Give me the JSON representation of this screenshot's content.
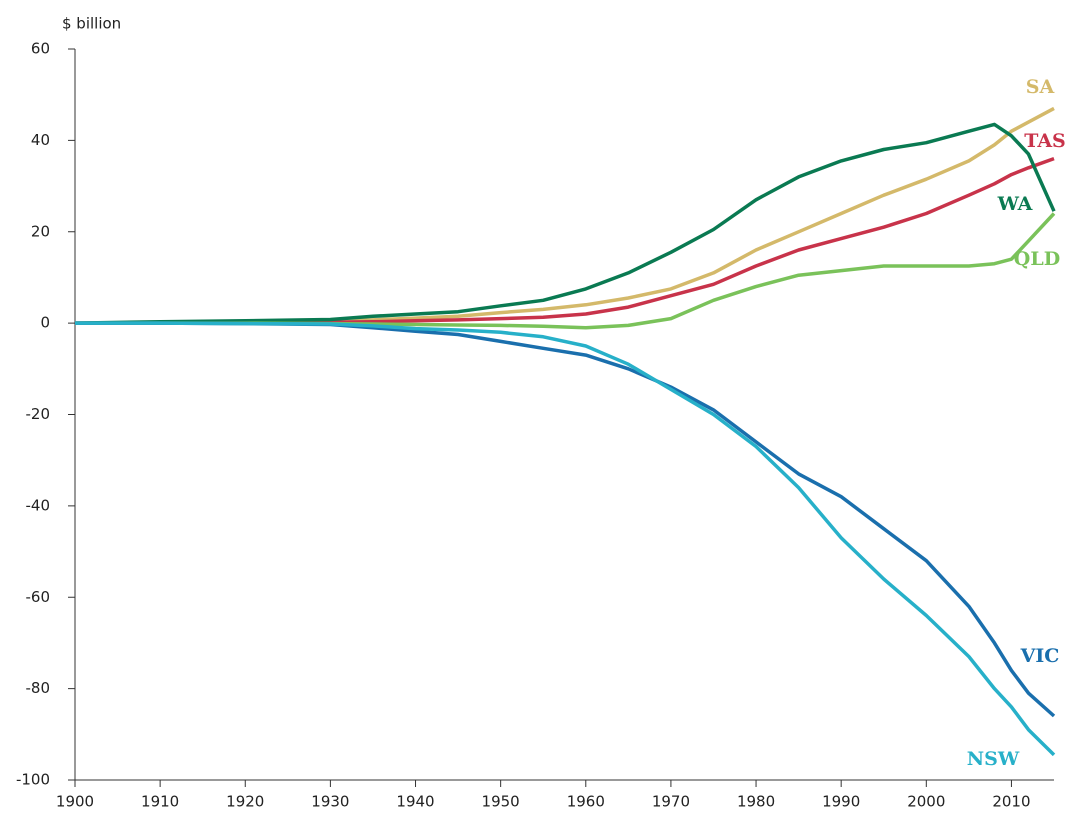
{
  "chart_data": {
    "type": "line",
    "y_label": "$ billion",
    "x": [
      1900,
      1910,
      1920,
      1930,
      1935,
      1940,
      1945,
      1950,
      1955,
      1960,
      1965,
      1970,
      1975,
      1980,
      1985,
      1990,
      1995,
      2000,
      2005,
      2008,
      2010,
      2012,
      2015
    ],
    "xlim": [
      1900,
      2015
    ],
    "xticks": [
      1900,
      1910,
      1920,
      1930,
      1940,
      1950,
      1960,
      1970,
      1980,
      1990,
      2000,
      2010
    ],
    "ylim": [
      -100,
      60
    ],
    "yticks": [
      -100,
      -80,
      -60,
      -40,
      -20,
      0,
      20,
      40,
      60
    ],
    "series": [
      {
        "name": "SA",
        "color": "#d4b96a",
        "values": [
          0,
          0.1,
          0.2,
          0.4,
          0.7,
          1.1,
          1.5,
          2.3,
          3,
          4,
          5.5,
          7.5,
          11,
          16,
          20,
          24,
          28,
          31.5,
          35.5,
          39,
          42,
          44,
          47
        ]
      },
      {
        "name": "TAS",
        "color": "#c8334a",
        "values": [
          0,
          0,
          0.1,
          0.2,
          0.3,
          0.5,
          0.7,
          1,
          1.3,
          2,
          3.5,
          6,
          8.5,
          12.5,
          16,
          18.5,
          21,
          24,
          28,
          30.5,
          32.5,
          34,
          36
        ]
      },
      {
        "name": "WA",
        "color": "#0a7a52",
        "values": [
          0,
          0.3,
          0.5,
          0.8,
          1.5,
          2,
          2.5,
          3.8,
          5,
          7.5,
          11,
          15.5,
          20.5,
          27,
          32,
          35.5,
          38,
          39.5,
          42,
          43.5,
          41,
          37,
          24.5
        ]
      },
      {
        "name": "QLD",
        "color": "#7ac25a",
        "values": [
          0,
          0,
          0,
          -0.1,
          -0.2,
          -0.3,
          -0.4,
          -0.5,
          -0.7,
          -1,
          -0.5,
          1,
          5,
          8,
          10.5,
          11.5,
          12.5,
          12.5,
          12.5,
          13,
          14,
          18,
          24
        ]
      },
      {
        "name": "VIC",
        "color": "#1a6fad",
        "values": [
          0,
          0,
          -0.1,
          -0.3,
          -1,
          -1.8,
          -2.5,
          -4,
          -5.5,
          -7,
          -10,
          -14,
          -19,
          -26,
          -33,
          -38,
          -45,
          -52,
          -62,
          -70,
          -76,
          -81,
          -86
        ]
      },
      {
        "name": "NSW",
        "color": "#27b0c9",
        "values": [
          0,
          0,
          -0.1,
          -0.2,
          -0.6,
          -1.2,
          -1.5,
          -2,
          -3,
          -5,
          -9,
          -14.5,
          -20,
          -27,
          -36,
          -47,
          -56,
          -64,
          -73,
          -80,
          -84,
          -89,
          -94.5
        ]
      }
    ]
  }
}
